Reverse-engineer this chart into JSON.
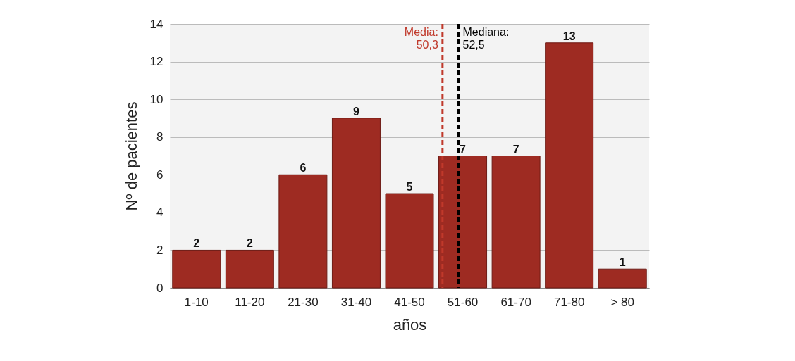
{
  "chart_data": {
    "type": "bar",
    "xlabel": "años",
    "ylabel": "Nº de pacientes",
    "categories": [
      "1-10",
      "11-20",
      "21-30",
      "31-40",
      "41-50",
      "51-60",
      "61-70",
      "71-80",
      "> 80"
    ],
    "values": [
      2,
      2,
      6,
      9,
      5,
      7,
      7,
      13,
      1
    ],
    "color": "#9e2b22",
    "ylim": [
      0,
      14
    ],
    "yticks": [
      0,
      2,
      4,
      6,
      8,
      10,
      12,
      14
    ],
    "grid": "y",
    "data_labels": true,
    "ref_lines": [
      {
        "axis": "x",
        "value": "51-60",
        "label": "Media: 50,3",
        "color": "#c0392b",
        "line_style": "dashed"
      },
      {
        "axis": "x",
        "value": "51-60",
        "label": "Mediana: 52,5",
        "color": "#000000",
        "line_style": "dashed"
      }
    ]
  }
}
